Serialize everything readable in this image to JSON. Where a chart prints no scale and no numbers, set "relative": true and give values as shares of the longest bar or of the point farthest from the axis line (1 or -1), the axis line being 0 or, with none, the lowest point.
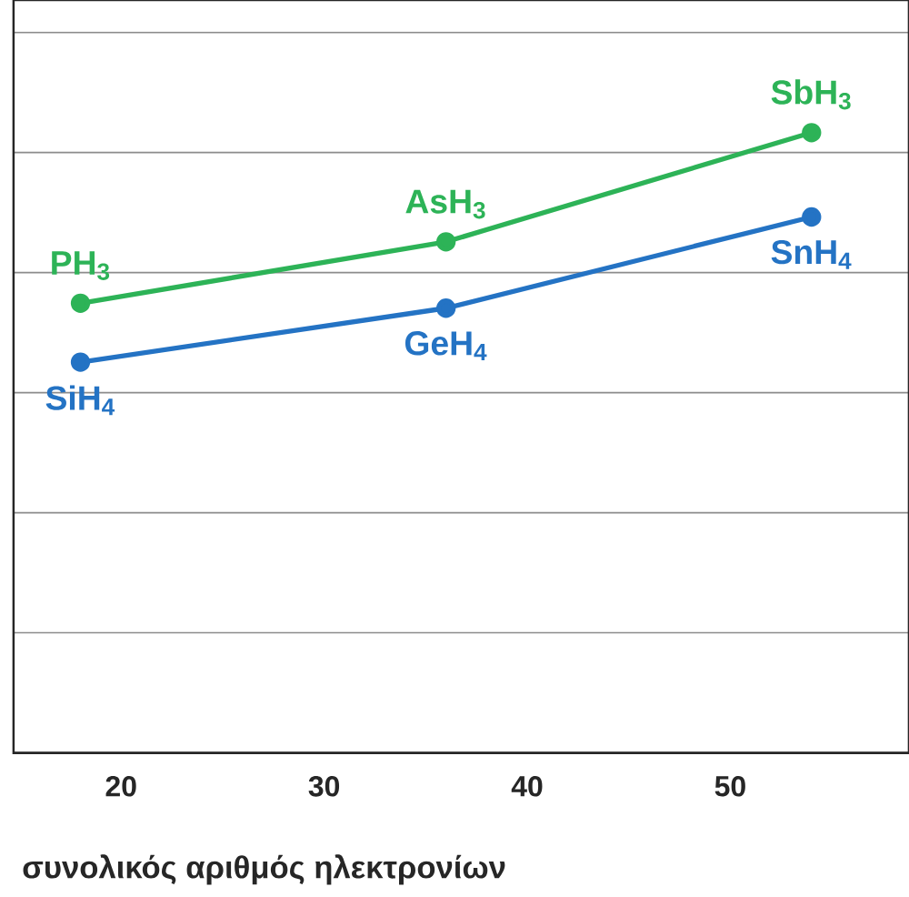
{
  "chart_data": {
    "type": "line",
    "xlabel": "συνολικός αριθμός ηλεκτρονίων",
    "relative": true,
    "x": [
      18,
      36,
      54
    ],
    "xlim": [
      14.7,
      58.8
    ],
    "xticks": [
      20,
      30,
      40,
      50
    ],
    "series": [
      {
        "color": "#2db357",
        "values": [
          0.725,
          0.824,
          1.0
        ]
      },
      {
        "color": "#2473c4",
        "values": [
          0.63,
          0.717,
          0.864
        ]
      }
    ],
    "annotations": [
      {
        "text": "PH$_{3}$",
        "x": 18,
        "y": 0.725
      },
      {
        "text": "AsH$_{3}$",
        "x": 36,
        "y": 0.824
      },
      {
        "text": "SbH$_{3}$",
        "x": 54,
        "y": 1.0
      },
      {
        "text": "SiH$_{4}$",
        "x": 18,
        "y": 0.63
      },
      {
        "text": "GeH$_{4}$",
        "x": 36,
        "y": 0.717
      },
      {
        "text": "SnH$_{4}$",
        "x": 54,
        "y": 0.864
      }
    ],
    "grid": "y",
    "marker": "circle",
    "line_style": "solid"
  }
}
